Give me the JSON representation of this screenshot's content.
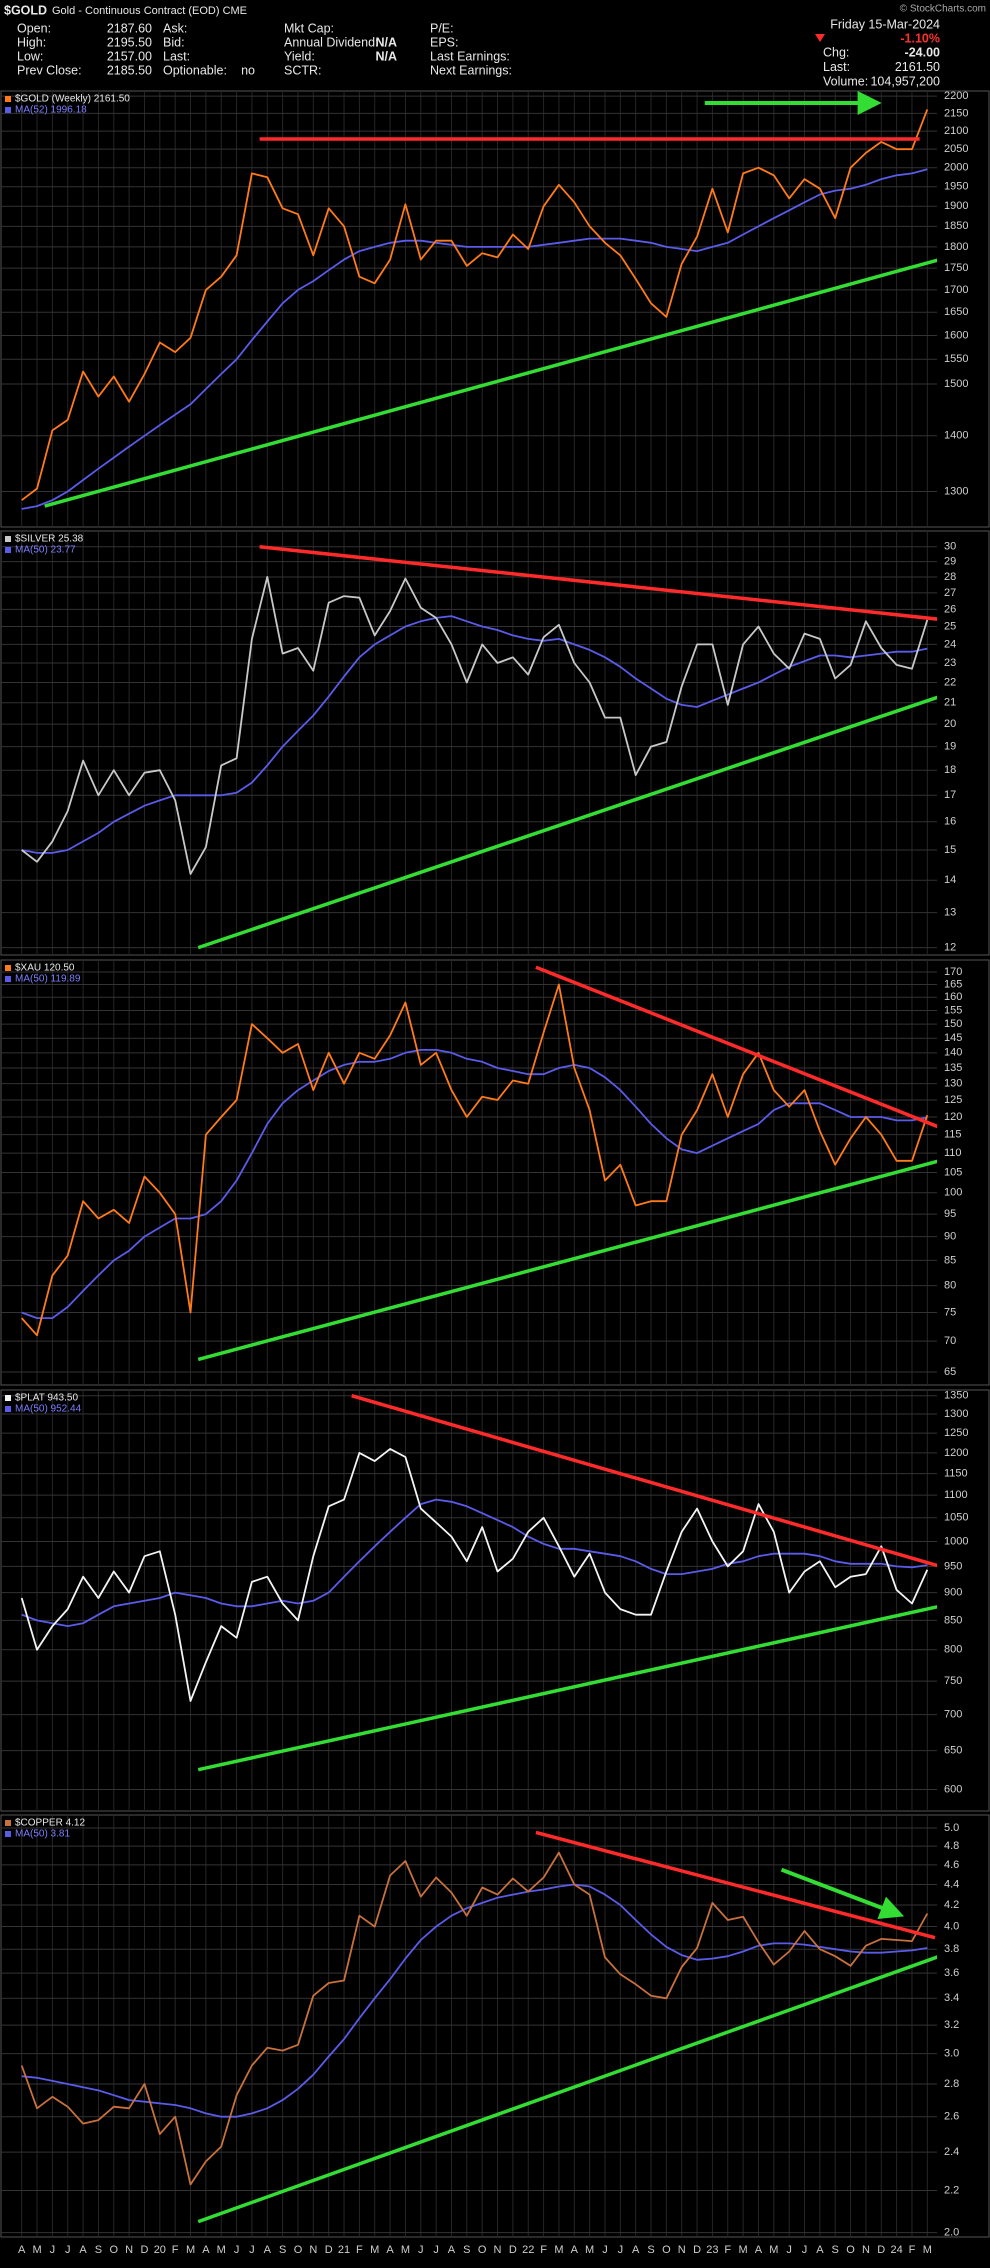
{
  "header": {
    "symbol": "$GOLD",
    "name": "Gold - Continuous Contract (EOD) CME",
    "credit": "© StockCharts.com",
    "columns": [
      [
        {
          "label": "Open:",
          "value": "2187.60"
        },
        {
          "label": "High:",
          "value": "2195.50"
        },
        {
          "label": "Low:",
          "value": "2157.00"
        },
        {
          "label": "Prev Close:",
          "value": "2185.50"
        }
      ],
      [
        {
          "label": "Ask:"
        },
        {
          "label": "Bid:"
        },
        {
          "label": "Last:"
        },
        {
          "label": "Optionable:",
          "value": "no"
        }
      ],
      [
        {
          "label": "Mkt Cap:"
        },
        {
          "label": "Annual Dividend:",
          "value": "N/A"
        },
        {
          "label": "Yield:",
          "value": "N/A"
        },
        {
          "label": "SCTR:"
        }
      ],
      [
        {
          "label": "P/E:"
        },
        {
          "label": "EPS:"
        },
        {
          "label": "Last Earnings:"
        },
        {
          "label": "Next Earnings:"
        }
      ]
    ],
    "date": "Friday 15-Mar-2024",
    "change_pct": "-1.10%",
    "right": [
      {
        "label": "Chg:",
        "value": "-24.00"
      },
      {
        "label": "Last:",
        "value": "2161.50"
      },
      {
        "label": "Volume:",
        "value": "104,957,200"
      }
    ]
  },
  "chart_data": [
    {
      "type": "line",
      "log": true,
      "ylim": [
        1240,
        2215
      ],
      "yticks": [
        1300,
        1400,
        1500,
        1550,
        1600,
        1650,
        1700,
        1750,
        1800,
        1850,
        1900,
        1950,
        2000,
        2050,
        2100,
        2150,
        2200
      ],
      "series": [
        {
          "name": "$GOLD (Weekly) 2161.50",
          "color": "#ff7a1a",
          "values": [
            1285,
            1305,
            1410,
            1430,
            1525,
            1475,
            1515,
            1465,
            1520,
            1585,
            1565,
            1595,
            1700,
            1730,
            1780,
            1985,
            1975,
            1895,
            1880,
            1780,
            1895,
            1850,
            1730,
            1715,
            1770,
            1905,
            1770,
            1815,
            1815,
            1755,
            1785,
            1775,
            1830,
            1795,
            1900,
            1955,
            1910,
            1850,
            1810,
            1780,
            1725,
            1670,
            1640,
            1760,
            1825,
            1945,
            1835,
            1985,
            2000,
            1980,
            1920,
            1970,
            1945,
            1870,
            2000,
            2040,
            2070,
            2050,
            2050,
            2161.5
          ]
        },
        {
          "name": "MA(52) 1996.18",
          "color": "#5b5bea",
          "values": [
            1270,
            1275,
            1285,
            1300,
            1320,
            1340,
            1360,
            1380,
            1400,
            1420,
            1440,
            1460,
            1490,
            1520,
            1550,
            1590,
            1630,
            1670,
            1700,
            1720,
            1745,
            1770,
            1790,
            1800,
            1810,
            1815,
            1815,
            1810,
            1805,
            1800,
            1800,
            1800,
            1800,
            1800,
            1805,
            1810,
            1815,
            1820,
            1820,
            1820,
            1815,
            1810,
            1800,
            1795,
            1790,
            1800,
            1810,
            1830,
            1850,
            1870,
            1890,
            1910,
            1930,
            1940,
            1945,
            1955,
            1970,
            1980,
            1985,
            1996.18
          ]
        }
      ],
      "trendlines": [
        {
          "color": "#ff2a2a",
          "x": [
            15.5,
            58.5
          ],
          "values": [
            2078,
            2078
          ]
        },
        {
          "color": "#33dd33",
          "x": [
            1.5,
            59.8
          ],
          "values": [
            1275,
            1770
          ]
        }
      ],
      "arrows": [
        {
          "color": "#33dd33",
          "x": [
            44.5,
            55.5
          ],
          "values": [
            2180,
            2180
          ]
        }
      ]
    },
    {
      "type": "line",
      "log": true,
      "ylim": [
        11.8,
        31.1
      ],
      "yticks": [
        12,
        13,
        14,
        15,
        16,
        17,
        18,
        19,
        20,
        21,
        22,
        23,
        24,
        25,
        26,
        27,
        28,
        29,
        30
      ],
      "series": [
        {
          "name": "$SILVER 25.38",
          "color": "#c8c8c8",
          "values": [
            15.0,
            14.6,
            15.3,
            16.4,
            18.4,
            17.0,
            18.0,
            17.0,
            17.9,
            18.0,
            16.8,
            14.2,
            15.1,
            18.2,
            18.5,
            24.3,
            28.0,
            23.5,
            23.8,
            22.6,
            26.4,
            26.8,
            26.7,
            24.5,
            25.9,
            27.9,
            26.1,
            25.5,
            24.0,
            22.0,
            24.0,
            23.0,
            23.3,
            22.4,
            24.4,
            25.1,
            23.0,
            22.0,
            20.3,
            20.3,
            17.8,
            19.0,
            19.2,
            21.8,
            24.0,
            24.0,
            20.9,
            24.0,
            25.0,
            23.5,
            22.7,
            24.6,
            24.3,
            22.2,
            22.9,
            25.3,
            23.8,
            22.9,
            22.7,
            25.38
          ]
        },
        {
          "name": "MA(50) 23.77",
          "color": "#5b5bea",
          "values": [
            15.0,
            14.9,
            14.9,
            15.0,
            15.3,
            15.6,
            16.0,
            16.3,
            16.6,
            16.8,
            17.0,
            17.0,
            17.0,
            17.0,
            17.1,
            17.5,
            18.2,
            19.0,
            19.7,
            20.4,
            21.3,
            22.3,
            23.3,
            24.0,
            24.5,
            25.0,
            25.3,
            25.5,
            25.6,
            25.3,
            25.0,
            24.8,
            24.5,
            24.3,
            24.2,
            24.3,
            24.0,
            23.7,
            23.3,
            22.8,
            22.2,
            21.7,
            21.2,
            20.9,
            20.8,
            21.1,
            21.4,
            21.7,
            22.0,
            22.4,
            22.8,
            23.1,
            23.4,
            23.4,
            23.3,
            23.4,
            23.5,
            23.6,
            23.6,
            23.77
          ]
        }
      ],
      "trendlines": [
        {
          "color": "#ff2a2a",
          "x": [
            15.5,
            61
          ],
          "values": [
            30.0,
            25.3
          ]
        },
        {
          "color": "#33dd33",
          "x": [
            11.5,
            59.8
          ],
          "values": [
            12.0,
            21.3
          ]
        }
      ]
    },
    {
      "type": "line",
      "log": true,
      "ylim": [
        63,
        175
      ],
      "yticks": [
        65,
        70,
        75,
        80,
        85,
        90,
        95,
        100,
        105,
        110,
        115,
        120,
        125,
        130,
        135,
        140,
        145,
        150,
        155,
        160,
        165,
        170
      ],
      "series": [
        {
          "name": "$XAU 120.50",
          "color": "#ff7a1a",
          "values": [
            74,
            71,
            82,
            86,
            98,
            94,
            96,
            93,
            104,
            100,
            95,
            75,
            115,
            120,
            125,
            150,
            145,
            140,
            143,
            128,
            140,
            130,
            140,
            138,
            146,
            158,
            136,
            140,
            128,
            120,
            126,
            125,
            131,
            130,
            147,
            165,
            135,
            122,
            103,
            107,
            97,
            98,
            98,
            115,
            122,
            133,
            120,
            133,
            140,
            128,
            123,
            128,
            116,
            107,
            114,
            120,
            115,
            108,
            108,
            120.5
          ]
        },
        {
          "name": "MA(50) 119.89",
          "color": "#5b5bea",
          "values": [
            75,
            74,
            74,
            76,
            79,
            82,
            85,
            87,
            90,
            92,
            94,
            94,
            95,
            98,
            103,
            110,
            118,
            124,
            128,
            131,
            134,
            136,
            137,
            137,
            138,
            140,
            141,
            141,
            140,
            138,
            137,
            135,
            134,
            133,
            133,
            135,
            136,
            135,
            132,
            128,
            123,
            118,
            114,
            111,
            110,
            112,
            114,
            116,
            118,
            122,
            124,
            124,
            124,
            122,
            120,
            120,
            120,
            119,
            119,
            119.89
          ]
        }
      ],
      "trendlines": [
        {
          "color": "#ff2a2a",
          "x": [
            33.5,
            61
          ],
          "values": [
            172,
            115
          ]
        },
        {
          "color": "#33dd33",
          "x": [
            11.5,
            59.8
          ],
          "values": [
            67,
            108
          ]
        }
      ]
    },
    {
      "type": "line",
      "log": true,
      "ylim": [
        574,
        1366
      ],
      "yticks": [
        600,
        650,
        700,
        750,
        800,
        850,
        900,
        950,
        1000,
        1050,
        1100,
        1150,
        1200,
        1250,
        1300,
        1350
      ],
      "series": [
        {
          "name": "$PLAT 943.50",
          "color": "#f4f4f4",
          "values": [
            890,
            800,
            840,
            870,
            930,
            890,
            940,
            900,
            970,
            980,
            860,
            720,
            780,
            840,
            820,
            920,
            930,
            880,
            850,
            970,
            1075,
            1090,
            1200,
            1180,
            1210,
            1190,
            1070,
            1040,
            1010,
            960,
            1030,
            940,
            965,
            1020,
            1050,
            990,
            930,
            975,
            900,
            870,
            860,
            860,
            940,
            1020,
            1070,
            1000,
            950,
            980,
            1080,
            1020,
            900,
            940,
            960,
            910,
            930,
            935,
            990,
            905,
            880,
            943.5
          ]
        },
        {
          "name": "MA(50) 952.44",
          "color": "#5b5bea",
          "values": [
            860,
            850,
            845,
            840,
            845,
            860,
            875,
            880,
            885,
            890,
            900,
            895,
            890,
            880,
            875,
            875,
            880,
            885,
            880,
            885,
            900,
            930,
            960,
            990,
            1020,
            1050,
            1080,
            1090,
            1085,
            1075,
            1060,
            1045,
            1030,
            1010,
            995,
            985,
            985,
            980,
            975,
            970,
            960,
            945,
            935,
            935,
            940,
            945,
            955,
            960,
            970,
            975,
            975,
            975,
            970,
            960,
            955,
            955,
            955,
            950,
            948,
            952.44
          ]
        }
      ],
      "trendlines": [
        {
          "color": "#ff2a2a",
          "x": [
            21.5,
            61
          ],
          "values": [
            1350,
            940
          ]
        },
        {
          "color": "#33dd33",
          "x": [
            11.5,
            59.8
          ],
          "values": [
            625,
            875
          ]
        }
      ]
    },
    {
      "type": "line",
      "log": true,
      "ylim": [
        1.98,
        5.15
      ],
      "yticks": [
        {
          "value": 2,
          "label": "2.0"
        },
        2.2,
        2.4,
        2.6,
        2.8,
        {
          "value": 3,
          "label": "3.0"
        },
        3.2,
        3.4,
        3.6,
        3.8,
        {
          "value": 4,
          "label": "4.0"
        },
        4.2,
        4.4,
        4.6,
        4.8,
        {
          "value": 5,
          "label": "5.0"
        }
      ],
      "categories": [
        "A",
        "M",
        "J",
        "J",
        "A",
        "S",
        "O",
        "N",
        "D",
        "20",
        "F",
        "M",
        "A",
        "M",
        "J",
        "J",
        "A",
        "S",
        "O",
        "N",
        "D",
        "21",
        "F",
        "M",
        "A",
        "M",
        "J",
        "J",
        "A",
        "S",
        "O",
        "N",
        "D",
        "22",
        "F",
        "M",
        "A",
        "M",
        "J",
        "J",
        "A",
        "S",
        "O",
        "N",
        "D",
        "23",
        "F",
        "M",
        "A",
        "M",
        "J",
        "J",
        "A",
        "S",
        "O",
        "N",
        "D",
        "24",
        "F",
        "M"
      ],
      "series": [
        {
          "name": "$COPPER 4.12",
          "color": "#c8703e",
          "values": [
            2.92,
            2.65,
            2.72,
            2.66,
            2.56,
            2.58,
            2.66,
            2.65,
            2.8,
            2.5,
            2.6,
            2.23,
            2.35,
            2.43,
            2.73,
            2.92,
            3.04,
            3.02,
            3.06,
            3.42,
            3.52,
            3.54,
            4.1,
            4.0,
            4.49,
            4.64,
            4.28,
            4.47,
            4.32,
            4.1,
            4.37,
            4.3,
            4.46,
            4.33,
            4.47,
            4.73,
            4.4,
            4.3,
            3.73,
            3.59,
            3.51,
            3.42,
            3.4,
            3.65,
            3.81,
            4.22,
            4.06,
            4.09,
            3.86,
            3.67,
            3.78,
            3.96,
            3.8,
            3.74,
            3.66,
            3.83,
            3.89,
            3.88,
            3.87,
            4.12
          ]
        },
        {
          "name": "MA(50) 3.81",
          "color": "#5b5bea",
          "values": [
            2.85,
            2.84,
            2.82,
            2.8,
            2.78,
            2.76,
            2.73,
            2.7,
            2.69,
            2.68,
            2.67,
            2.65,
            2.62,
            2.6,
            2.6,
            2.62,
            2.65,
            2.7,
            2.77,
            2.86,
            2.98,
            3.1,
            3.25,
            3.4,
            3.55,
            3.72,
            3.88,
            4.0,
            4.1,
            4.17,
            4.22,
            4.27,
            4.3,
            4.33,
            4.35,
            4.38,
            4.4,
            4.38,
            4.3,
            4.2,
            4.06,
            3.93,
            3.82,
            3.75,
            3.71,
            3.72,
            3.74,
            3.78,
            3.83,
            3.85,
            3.85,
            3.84,
            3.82,
            3.8,
            3.78,
            3.77,
            3.77,
            3.78,
            3.79,
            3.81
          ]
        }
      ],
      "trendlines": [
        {
          "color": "#ff2a2a",
          "x": [
            33.5,
            59.5
          ],
          "values": [
            4.95,
            3.9
          ]
        },
        {
          "color": "#33dd33",
          "x": [
            11.5,
            59.8
          ],
          "values": [
            2.05,
            3.74
          ]
        }
      ],
      "arrows": [
        {
          "color": "#33dd33",
          "x": [
            49.5,
            57
          ],
          "values": [
            4.55,
            4.12
          ]
        }
      ]
    }
  ]
}
